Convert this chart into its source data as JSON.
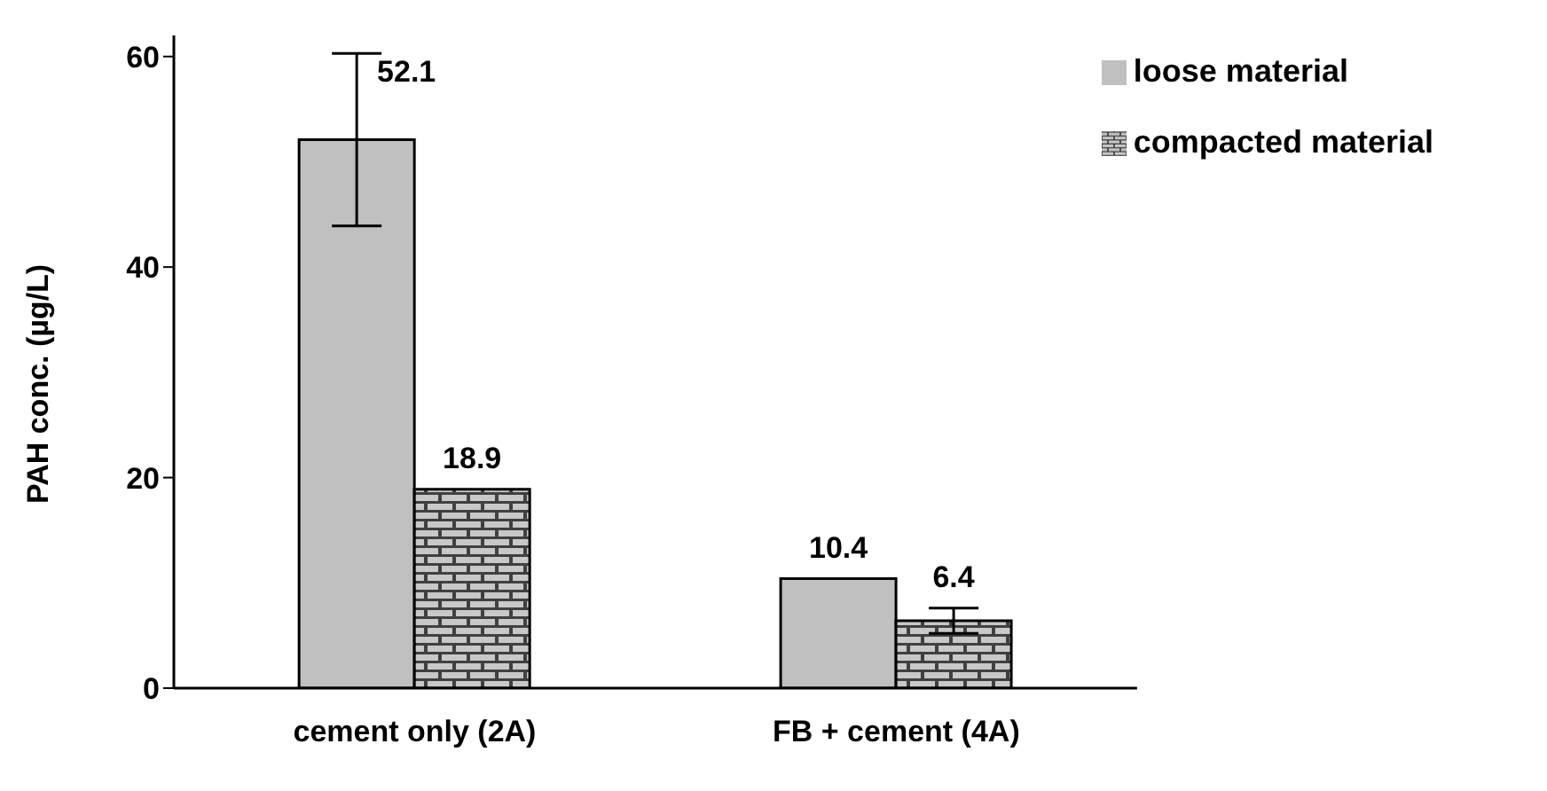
{
  "chart_data": {
    "type": "bar",
    "ylabel": "PAH conc. (µg/L)",
    "categories": [
      "cement only (2A)",
      "FB + cement (4A)"
    ],
    "series": [
      {
        "name": "loose material",
        "color": "#c0c0c0",
        "values": [
          52.1,
          10.4
        ],
        "errors": [
          8.2,
          null
        ],
        "value_labels": [
          "52.1",
          "10.4"
        ]
      },
      {
        "name": "compacted material",
        "color": "#000000",
        "values": [
          18.9,
          6.4
        ],
        "errors": [
          null,
          1.2
        ],
        "value_labels": [
          "18.9",
          "6.4"
        ]
      }
    ],
    "ylim": [
      0,
      62
    ],
    "yticks": [
      0,
      20,
      40,
      60
    ],
    "grid": false,
    "legend": "top right"
  }
}
